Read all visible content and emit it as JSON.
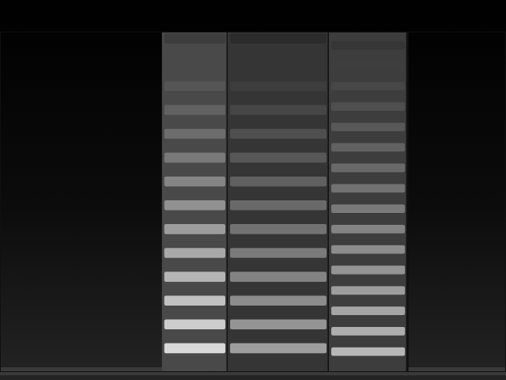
{
  "chart_data": {
    "type": "spectrogram",
    "tick_labels": false,
    "xlim": [
      0,
      100
    ],
    "ylim": [
      0,
      100
    ],
    "segments": [
      {
        "start": 32,
        "end": 45,
        "harmonic_spacing": 7,
        "level": 0.9
      },
      {
        "start": 45,
        "end": 65,
        "harmonic_spacing": 7,
        "level": 0.65
      },
      {
        "start": 65,
        "end": 80.5,
        "harmonic_spacing": 6,
        "level": 0.75
      }
    ]
  }
}
